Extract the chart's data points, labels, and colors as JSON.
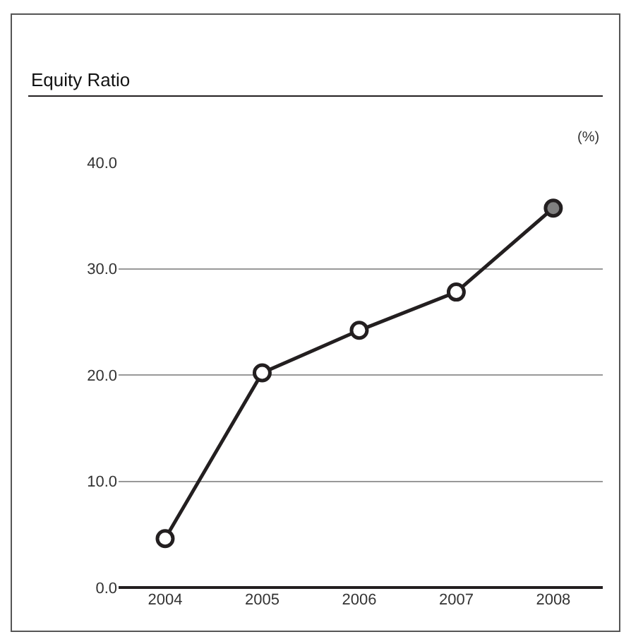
{
  "chart_data": {
    "type": "line",
    "title": "Equity Ratio",
    "ylabel": "(%)",
    "categories": [
      "2004",
      "2005",
      "2006",
      "2007",
      "2008"
    ],
    "series": [
      {
        "color": "#231f20",
        "colors": [
          "#ffffff",
          "#ffffff",
          "#ffffff",
          "#ffffff",
          "#808080"
        ],
        "values": [
          4.6,
          20.2,
          24.2,
          27.8,
          35.7
        ]
      }
    ],
    "ylim": [
      0,
      40
    ],
    "yticks": [
      {
        "value": 0,
        "label": "0.0"
      },
      {
        "value": 10,
        "label": "10.0"
      },
      {
        "value": 20,
        "label": "20.0"
      },
      {
        "value": 30,
        "label": "30.0"
      },
      {
        "value": 40,
        "label": "40.0"
      }
    ],
    "grid": "y",
    "marker": "circle",
    "line_style": "solid",
    "legend": false
  }
}
